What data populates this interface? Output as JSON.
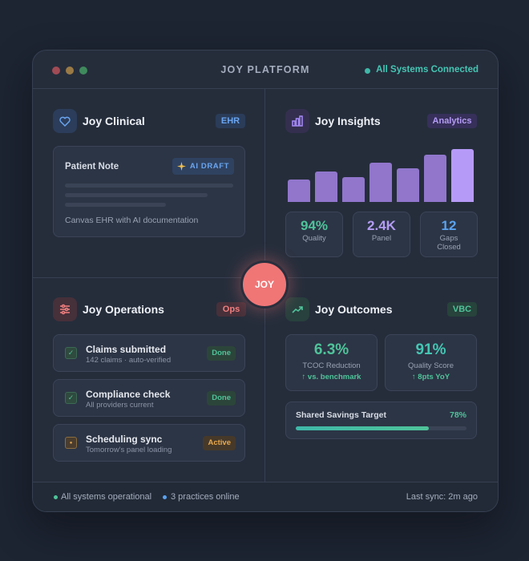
{
  "header": {
    "title": "JOY PLATFORM",
    "status": "All Systems Connected"
  },
  "clinical": {
    "title": "Joy Clinical",
    "badge": "EHR",
    "note": {
      "title": "Patient Note",
      "badge": "AI DRAFT",
      "caption": "Canvas EHR with AI documentation"
    }
  },
  "insights": {
    "title": "Joy Insights",
    "badge": "Analytics",
    "bars": [
      28,
      38,
      31,
      49,
      42,
      59,
      66
    ],
    "stats": [
      {
        "value": "94%",
        "label": "Quality"
      },
      {
        "value": "2.4K",
        "label": "Panel"
      },
      {
        "value": "12",
        "label": "Gaps Closed"
      }
    ]
  },
  "center": {
    "label": "JOY"
  },
  "operations": {
    "title": "Joy Operations",
    "badge": "Ops",
    "tasks": [
      {
        "title": "Claims submitted",
        "subtitle": "142 claims · auto-verified",
        "status": "Done"
      },
      {
        "title": "Compliance check",
        "subtitle": "All providers current",
        "status": "Done"
      },
      {
        "title": "Scheduling sync",
        "subtitle": "Tomorrow's panel loading",
        "status": "Active"
      }
    ]
  },
  "outcomes": {
    "title": "Joy Outcomes",
    "badge": "VBC",
    "metrics": [
      {
        "value": "6.3%",
        "label": "TCOC Reduction",
        "delta": "↑ vs. benchmark"
      },
      {
        "value": "91%",
        "label": "Quality Score",
        "delta": "↑ 8pts YoY"
      }
    ],
    "savings": {
      "label": "Shared Savings Target",
      "progress": {
        "value": 78,
        "label": "78%"
      }
    }
  },
  "footer": {
    "status": "All systems operational",
    "practices": "3 practices online",
    "sync": "Last sync: 2m ago"
  }
}
